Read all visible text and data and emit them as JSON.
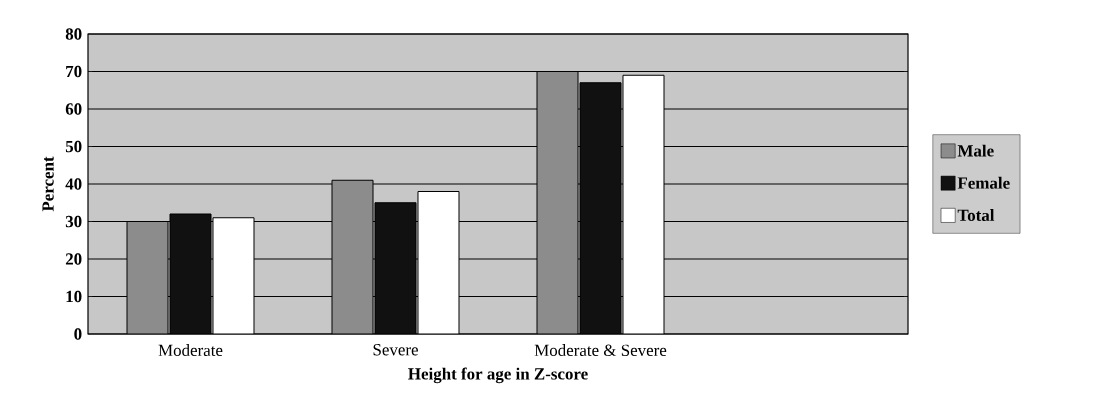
{
  "chart_data": {
    "type": "bar",
    "xlabel": "Height for age in Z-score",
    "ylabel": "Percent",
    "categories": [
      "Moderate",
      "Severe",
      "Moderate & Severe",
      null
    ],
    "series": [
      {
        "name": "Male",
        "color": "#8c8c8c",
        "values": [
          30,
          41,
          70,
          null
        ]
      },
      {
        "name": "Female",
        "color": "#111111",
        "values": [
          32,
          35,
          67,
          null
        ]
      },
      {
        "name": "Total",
        "color": "#ffffff",
        "values": [
          31,
          38,
          69,
          null
        ]
      }
    ],
    "ylim": [
      0,
      80
    ],
    "yticks": [
      0,
      10,
      20,
      30,
      40,
      50,
      60,
      70,
      80
    ],
    "grid": "y",
    "legend": "right"
  }
}
